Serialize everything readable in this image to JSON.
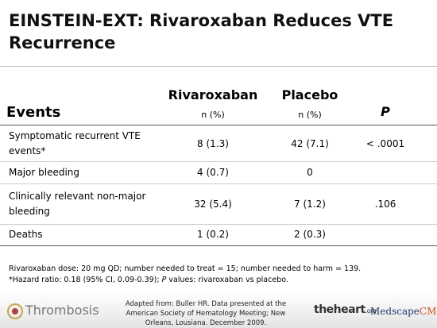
{
  "title": "EINSTEIN-EXT: Rivaroxaban Reduces VTE Recurrence",
  "table": {
    "header": {
      "events": "Events",
      "rivaroxaban": "Rivaroxaban",
      "rivaroxaban_unit": "n (%)",
      "placebo": "Placebo",
      "placebo_unit": "n (%)",
      "p": "P"
    },
    "rows": [
      {
        "event": "Symptomatic recurrent VTE events*",
        "rivaroxaban": "8 (1.3)",
        "placebo": "42 (7.1)",
        "p": "< .0001"
      },
      {
        "event": "Major bleeding",
        "rivaroxaban": "4 (0.7)",
        "placebo": "0"
      },
      {
        "event": "Clinically relevant non-major bleeding",
        "rivaroxaban": "32 (5.4)",
        "placebo": "7 (1.2)",
        "p": ".106"
      },
      {
        "event": "Deaths",
        "rivaroxaban": "1 (0.2)",
        "placebo": "2 (0.3)"
      }
    ]
  },
  "notes": {
    "dose": "Rivaroxaban dose: 20 mg QD; number needed to treat = 15; number needed to harm = 139.",
    "hazard_before": "*Hazard ratio: 0.18 (95% CI, 0.09-0.39); ",
    "hazard_italic": "P",
    "hazard_after": " values: rivaroxaban vs placebo."
  },
  "footer": {
    "logo": "Thrombosis",
    "citation": "Adapted from: Buller HR. Data presented at the American Society of Hematology Meeting; New Orleans, Lousiana. December 2009.",
    "heart_main": "theheart",
    "heart_suffix": ".org",
    "medscape": "Medscape",
    "medscape_cme": "CME"
  }
}
